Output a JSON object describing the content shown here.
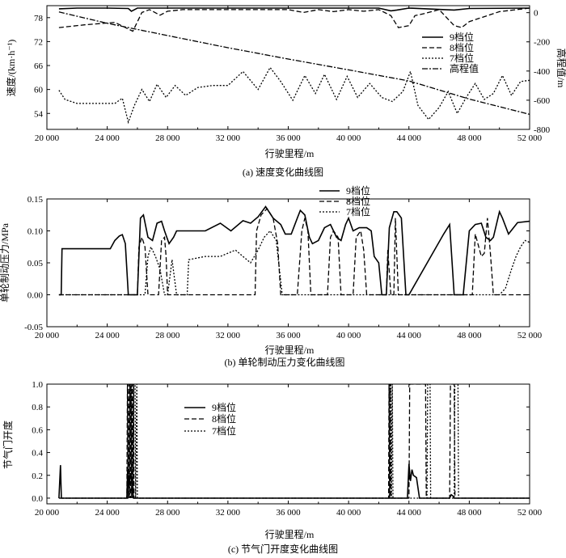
{
  "chart_data": [
    {
      "type": "line",
      "id": "a",
      "caption": "(a) 速度变化曲线图",
      "xlabel": "行驶里程/m",
      "ylabel": "速度/(km·h⁻¹)",
      "y2label": "高程值/m",
      "xlim": [
        20000,
        52000
      ],
      "ylim": [
        50,
        81
      ],
      "y2lim": [
        -800,
        48
      ],
      "xticks": [
        20000,
        24000,
        28000,
        32000,
        36000,
        40000,
        44000,
        48000,
        52000
      ],
      "xtick_labels": [
        "20 000",
        "24 000",
        "28 000",
        "32 000",
        "36 000",
        "40 000",
        "44 000",
        "48 000",
        "52 000"
      ],
      "yticks": [
        54,
        60,
        66,
        72,
        78
      ],
      "y2ticks": [
        0,
        -200,
        -400,
        -600,
        -800
      ],
      "legend": [
        "9档位",
        "8档位",
        "7档位",
        "高程值"
      ],
      "series": [
        {
          "name": "9档位",
          "style": "solid",
          "axis": "left",
          "x": [
            20800,
            22000,
            24000,
            25400,
            25600,
            26000,
            30000,
            34000,
            38000,
            42000,
            42800,
            43200,
            44000,
            47000,
            48000,
            52000
          ],
          "y": [
            80.2,
            80.4,
            80.4,
            80.3,
            79.6,
            80.4,
            80.4,
            80.4,
            80.4,
            80.4,
            79.7,
            79.9,
            80.4,
            79.9,
            80.3,
            80.4
          ]
        },
        {
          "name": "8档位",
          "style": "dashed",
          "axis": "left",
          "x": [
            20800,
            22500,
            24500,
            25200,
            25700,
            26300,
            26800,
            27500,
            28000,
            29000,
            30000,
            33000,
            36000,
            37000,
            38000,
            39000,
            40000,
            41000,
            42000,
            42800,
            43300,
            44000,
            44400,
            45000,
            46000,
            47000,
            47500,
            48000,
            50000,
            52000
          ],
          "y": [
            75.5,
            76.2,
            76.8,
            75.5,
            74.6,
            79.3,
            80.0,
            78.6,
            79.6,
            80.0,
            80.0,
            80.0,
            80.0,
            79.3,
            80.0,
            79.5,
            80.0,
            79.6,
            80.0,
            78.5,
            75.5,
            76.0,
            78.5,
            79.0,
            80.0,
            76.0,
            75.5,
            77.0,
            79.5,
            80.4
          ]
        },
        {
          "name": "7档位",
          "style": "dotted",
          "axis": "left",
          "x": [
            20800,
            21200,
            22000,
            23000,
            24500,
            25000,
            25400,
            25800,
            26300,
            26800,
            27300,
            27900,
            28500,
            29200,
            30000,
            31000,
            32000,
            33000,
            34000,
            34800,
            35500,
            36300,
            37100,
            37800,
            38400,
            39200,
            39900,
            40600,
            41400,
            42200,
            42900,
            43600,
            44100,
            44600,
            45300,
            46000,
            46600,
            47200,
            47800,
            48400,
            49000,
            49600,
            50200,
            50800,
            51400,
            52000
          ],
          "y": [
            59.8,
            57.5,
            56.5,
            56.5,
            56.5,
            57.8,
            51.8,
            56.0,
            60.0,
            57.0,
            61.3,
            58.0,
            61.0,
            58.5,
            60.5,
            61.0,
            61.0,
            64.5,
            60.0,
            65.5,
            62.0,
            57.3,
            63.5,
            59.0,
            63.8,
            57.5,
            63.3,
            58.0,
            61.5,
            58.0,
            57.0,
            59.5,
            64.5,
            56.0,
            52.5,
            55.5,
            59.5,
            54.0,
            58.0,
            61.5,
            57.5,
            59.0,
            63.5,
            58.5,
            62.0,
            62.3
          ]
        },
        {
          "name": "高程值",
          "style": "dashdot",
          "axis": "right",
          "x": [
            20800,
            24000,
            28000,
            32000,
            36000,
            40000,
            44000,
            48000,
            52000
          ],
          "y": [
            5,
            -73,
            -157,
            -240,
            -318,
            -392,
            -468,
            -592,
            -697
          ]
        }
      ]
    },
    {
      "type": "line",
      "id": "b",
      "caption": "(b) 单轮制动压力变化曲线图",
      "xlabel": "行驶里程/m",
      "ylabel": "单轮制动压力/MPa",
      "xlim": [
        20000,
        52000
      ],
      "ylim": [
        -0.05,
        0.15
      ],
      "xticks": [
        20000,
        24000,
        28000,
        32000,
        36000,
        40000,
        44000,
        48000,
        52000
      ],
      "xtick_labels": [
        "20 000",
        "24 000",
        "28 000",
        "32 000",
        "36 000",
        "40 000",
        "44 000",
        "48 000",
        "52 000"
      ],
      "yticks": [
        -0.05,
        0.0,
        0.05,
        0.1,
        0.15
      ],
      "ytick_labels": [
        "-0.05",
        "0.00",
        "0.05",
        "0.10",
        "0.15"
      ],
      "legend": [
        "9档位",
        "8档位",
        "7档位"
      ],
      "series": [
        {
          "name": "9档位",
          "style": "solid",
          "x": [
            20800,
            20950,
            21000,
            24200,
            24500,
            24800,
            25000,
            25200,
            25400,
            25500,
            26000,
            26200,
            26400,
            26700,
            27000,
            27300,
            27600,
            27800,
            28100,
            28400,
            28600,
            29400,
            30500,
            31500,
            32200,
            33000,
            33500,
            34000,
            34500,
            35000,
            35500,
            35800,
            36200,
            36600,
            36800,
            37100,
            37400,
            37600,
            38000,
            38400,
            38800,
            39200,
            39500,
            39800,
            40000,
            40300,
            40700,
            41200,
            41500,
            41700,
            42000,
            42200,
            42500,
            42700,
            43000,
            43200,
            43500,
            43800,
            44000,
            46300,
            46700,
            47000,
            47300,
            47600,
            48000,
            48400,
            48800,
            49100,
            49400,
            49600,
            50000,
            50200,
            50600,
            51200,
            52000
          ],
          "y": [
            0.0,
            0.0,
            0.072,
            0.072,
            0.085,
            0.092,
            0.094,
            0.08,
            0.0,
            0.0,
            0.0,
            0.12,
            0.125,
            0.09,
            0.085,
            0.112,
            0.115,
            0.1,
            0.08,
            0.09,
            0.1,
            0.1,
            0.1,
            0.112,
            0.1,
            0.116,
            0.112,
            0.122,
            0.138,
            0.12,
            0.11,
            0.095,
            0.095,
            0.12,
            0.132,
            0.125,
            0.09,
            0.08,
            0.085,
            0.105,
            0.11,
            0.09,
            0.085,
            0.11,
            0.12,
            0.1,
            0.105,
            0.105,
            0.1,
            0.06,
            0.05,
            0.0,
            0.0,
            0.105,
            0.13,
            0.13,
            0.12,
            0.0,
            0.0,
            0.095,
            0.11,
            0.0,
            0.0,
            0.0,
            0.1,
            0.11,
            0.112,
            0.09,
            0.085,
            0.09,
            0.13,
            0.12,
            0.095,
            0.113,
            0.115
          ]
        },
        {
          "name": "8档位",
          "style": "dashed",
          "x": [
            20800,
            26000,
            26100,
            26300,
            26500,
            26700,
            26800,
            27400,
            27600,
            27800,
            27900,
            28000,
            32000,
            33800,
            33900,
            34200,
            34600,
            35000,
            35300,
            35500,
            36000,
            36600,
            36900,
            37100,
            37300,
            37500,
            37700,
            38600,
            38800,
            39000,
            39300,
            39500,
            40300,
            40500,
            40800,
            41000,
            41200,
            42500,
            42600,
            42800,
            43000,
            43100,
            43300,
            44000,
            48200,
            48400,
            48800,
            49000,
            49200,
            49400,
            49600,
            49800,
            50000,
            52000
          ],
          "y": [
            0.0,
            0.0,
            0.075,
            0.09,
            0.075,
            0.0,
            0.0,
            0.0,
            0.085,
            0.09,
            0.06,
            0.0,
            0.0,
            0.0,
            0.1,
            0.125,
            0.135,
            0.12,
            0.08,
            0.0,
            0.0,
            0.0,
            0.1,
            0.12,
            0.1,
            0.0,
            0.0,
            0.0,
            0.09,
            0.1,
            0.09,
            0.0,
            0.0,
            0.09,
            0.1,
            0.07,
            0.0,
            0.0,
            0.07,
            0.0,
            0.0,
            0.12,
            0.0,
            0.0,
            0.0,
            0.095,
            0.06,
            0.065,
            0.12,
            0.065,
            0.0,
            0.0,
            0.0,
            0.0
          ]
        },
        {
          "name": "7档位",
          "style": "dotted",
          "x": [
            20800,
            26500,
            26700,
            26900,
            27200,
            27500,
            27800,
            28000,
            28300,
            28600,
            29000,
            29300,
            29400,
            30500,
            31500,
            32000,
            32500,
            33000,
            33500,
            34000,
            34400,
            34800,
            35200,
            35600,
            50000,
            50400,
            50800,
            51100,
            51400,
            51700,
            52000
          ],
          "y": [
            0.0,
            0.0,
            0.06,
            0.075,
            0.06,
            0.04,
            0.0,
            0.0,
            0.055,
            0.0,
            0.0,
            0.0,
            0.055,
            0.06,
            0.06,
            0.065,
            0.07,
            0.06,
            0.05,
            0.07,
            0.09,
            0.1,
            0.085,
            0.0,
            0.0,
            0.01,
            0.04,
            0.06,
            0.075,
            0.085,
            0.082
          ]
        }
      ]
    },
    {
      "type": "line",
      "id": "c",
      "caption": "(c) 节气门开度变化曲线图",
      "xlabel": "行驶里程/m",
      "ylabel": "节气门开度",
      "xlim": [
        20000,
        52000
      ],
      "ylim": [
        -0.05,
        1.0
      ],
      "xticks": [
        20000,
        24000,
        28000,
        32000,
        36000,
        40000,
        44000,
        48000,
        52000
      ],
      "xtick_labels": [
        "20 000",
        "24 000",
        "28 000",
        "32 000",
        "36 000",
        "40 000",
        "44 000",
        "48 000",
        "52 000"
      ],
      "yticks": [
        0.0,
        0.2,
        0.4,
        0.6,
        0.8,
        1.0
      ],
      "ytick_labels": [
        "0.0",
        "0.2",
        "0.4",
        "0.6",
        "0.8",
        "1.0"
      ],
      "legend": [
        "9档位",
        "8档位",
        "7档位"
      ],
      "series": [
        {
          "name": "9档位",
          "style": "solid",
          "x": [
            20800,
            20900,
            20960,
            21000,
            25300,
            25350,
            25400,
            25450,
            25500,
            25550,
            25600,
            25650,
            25700,
            25750,
            26000,
            43900,
            44000,
            44100,
            44200,
            44300,
            44500,
            44700,
            46700,
            46800,
            46900,
            47000,
            52000
          ],
          "y": [
            0.0,
            0.29,
            0.0,
            0.0,
            0.0,
            0.25,
            0.1,
            0.2,
            0.15,
            0.22,
            0.18,
            0.12,
            0.05,
            0.0,
            0.0,
            0.0,
            0.3,
            0.15,
            0.25,
            0.2,
            0.18,
            0.0,
            0.0,
            0.03,
            0.02,
            0.0,
            0.0
          ]
        },
        {
          "name": "8档位",
          "style": "dashed",
          "x": [
            20800,
            25300,
            25340,
            25380,
            25420,
            25460,
            25500,
            25540,
            25580,
            25620,
            25660,
            25700,
            25740,
            25780,
            42650,
            42680,
            42720,
            42760,
            42800,
            44000,
            44050,
            45100,
            45150,
            46700,
            46750,
            47000,
            47050,
            52000
          ],
          "y": [
            0.0,
            0.0,
            1.0,
            0.0,
            1.0,
            0.0,
            1.0,
            0.0,
            1.0,
            0.0,
            1.0,
            0.0,
            1.0,
            0.0,
            0.0,
            1.0,
            0.0,
            1.0,
            0.0,
            0.0,
            1.0,
            1.0,
            0.0,
            0.0,
            1.0,
            1.0,
            0.0,
            0.0
          ]
        },
        {
          "name": "7档位",
          "style": "dotted",
          "x": [
            20800,
            25500,
            25540,
            25600,
            25640,
            25720,
            25760,
            25840,
            25880,
            25960,
            26000,
            42700,
            42740,
            42800,
            42840,
            42900,
            42940,
            45200,
            45240,
            45400,
            45440,
            47000,
            47040,
            47250,
            47290,
            52000
          ],
          "y": [
            0.0,
            0.0,
            1.0,
            1.0,
            0.0,
            0.0,
            1.0,
            1.0,
            0.0,
            1.0,
            0.0,
            0.0,
            1.0,
            1.0,
            0.0,
            1.0,
            0.0,
            0.0,
            1.0,
            1.0,
            0.0,
            0.0,
            1.0,
            1.0,
            0.0,
            0.0
          ]
        }
      ]
    }
  ]
}
